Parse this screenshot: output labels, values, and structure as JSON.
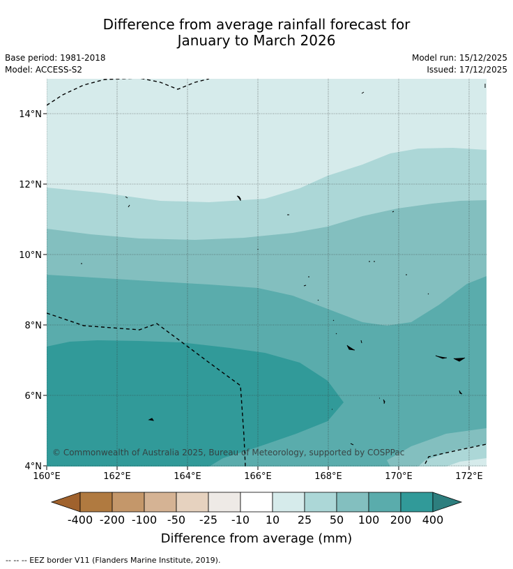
{
  "title_line1": "Difference from average rainfall forecast for",
  "title_line2": "January to March 2026",
  "base_period": "Base period: 1981-2018",
  "model": "Model: ACCESS-S2",
  "model_run": "Model run: 15/12/2025",
  "issued": "Issued: 17/12/2025",
  "copyright": "© Commonwealth of Australia 2025, Bureau of Meteorology, supported by COSPPac",
  "lat_labels": [
    "14°N",
    "12°N",
    "10°N",
    "8°N",
    "6°N",
    "4°N"
  ],
  "lon_labels": [
    "160°E",
    "162°E",
    "164°E",
    "166°E",
    "168°E",
    "170°E",
    "172°E"
  ],
  "colorbar": {
    "labels": [
      "-400",
      "-200",
      "-100",
      "-50",
      "-25",
      "-10",
      "10",
      "25",
      "50",
      "100",
      "200",
      "400"
    ],
    "colors": [
      "#a0622d",
      "#b07a40",
      "#c4976a",
      "#d5b394",
      "#e6d2bf",
      "#eeeae6",
      "#ffffff",
      "#d6ebeb",
      "#acd7d7",
      "#83bfbf",
      "#5aacac",
      "#319a99",
      "#2d7e7e"
    ],
    "title": "Difference from average (mm)"
  },
  "footer": "--  --  -- EEZ border V11 (Flanders Marine Institute, 2019)."
}
